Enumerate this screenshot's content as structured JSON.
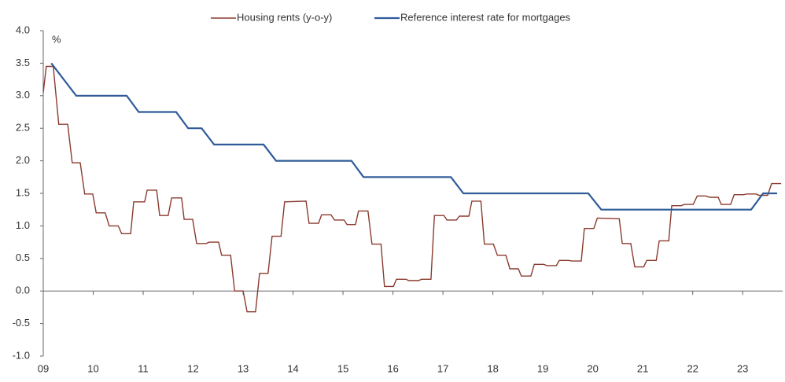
{
  "chart_data": {
    "type": "line",
    "annotation": "%",
    "xlim": [
      9,
      23.8
    ],
    "xticks": [
      {
        "value": 9,
        "label": "09"
      },
      10,
      11,
      12,
      13,
      14,
      15,
      16,
      17,
      18,
      19,
      20,
      21,
      22,
      23
    ],
    "ylim": [
      -1,
      4
    ],
    "yticks": [
      {
        "value": -1,
        "label": "-1.0"
      },
      {
        "value": -0.5,
        "label": "-0.5"
      },
      {
        "value": 0,
        "label": "0.0"
      },
      {
        "value": 0.5,
        "label": "0.5"
      },
      {
        "value": 1,
        "label": "1.0"
      },
      {
        "value": 1.5,
        "label": "1.5"
      },
      {
        "value": 2,
        "label": "2.0"
      },
      {
        "value": 2.5,
        "label": "2.5"
      },
      {
        "value": 3,
        "label": "3.0"
      },
      {
        "value": 3.5,
        "label": "3.5"
      },
      {
        "value": 4,
        "label": "4.0"
      }
    ],
    "grid": false,
    "legend": "top",
    "series": [
      {
        "name": "Housing rents (y-o-y)",
        "color": "#8b3a2e",
        "x": [
          9.0,
          9.06,
          9.2,
          9.31,
          9.49,
          9.58,
          9.74,
          9.83,
          9.99,
          10.06,
          10.24,
          10.32,
          10.5,
          10.57,
          10.75,
          10.81,
          11.03,
          11.08,
          11.27,
          11.33,
          11.5,
          11.57,
          11.77,
          11.82,
          11.99,
          12.07,
          12.26,
          12.32,
          12.51,
          12.57,
          12.75,
          12.83,
          13.0,
          13.08,
          13.25,
          13.33,
          13.5,
          13.58,
          13.76,
          13.83,
          14.26,
          14.32,
          14.51,
          14.57,
          14.76,
          14.83,
          15.02,
          15.08,
          15.25,
          15.31,
          15.5,
          15.58,
          15.76,
          15.83,
          16.01,
          16.07,
          16.26,
          16.32,
          16.51,
          16.57,
          16.76,
          16.83,
          17.02,
          17.08,
          17.27,
          17.33,
          17.52,
          17.58,
          17.76,
          17.83,
          18.01,
          18.09,
          18.26,
          18.34,
          18.51,
          18.57,
          18.76,
          18.83,
          19.02,
          19.08,
          19.27,
          19.33,
          19.52,
          19.58,
          19.77,
          19.83,
          20.02,
          20.09,
          20.53,
          20.59,
          20.76,
          20.84,
          21.02,
          21.08,
          21.27,
          21.33,
          21.52,
          21.58,
          21.77,
          21.83,
          22.01,
          22.09,
          22.26,
          22.34,
          22.51,
          22.57,
          22.76,
          22.83,
          23.02,
          23.08,
          23.27,
          23.33,
          23.5,
          23.58,
          23.77
        ],
        "values": [
          3.05,
          3.45,
          3.45,
          2.56,
          2.56,
          1.97,
          1.97,
          1.49,
          1.49,
          1.2,
          1.2,
          1.0,
          1.0,
          0.88,
          0.88,
          1.37,
          1.37,
          1.55,
          1.55,
          1.16,
          1.16,
          1.43,
          1.43,
          1.1,
          1.1,
          0.73,
          0.73,
          0.75,
          0.75,
          0.55,
          0.55,
          0.0,
          0.0,
          -0.32,
          -0.32,
          0.27,
          0.27,
          0.84,
          0.84,
          1.37,
          1.38,
          1.04,
          1.04,
          1.17,
          1.17,
          1.09,
          1.09,
          1.02,
          1.02,
          1.23,
          1.23,
          0.72,
          0.72,
          0.07,
          0.07,
          0.18,
          0.18,
          0.16,
          0.16,
          0.18,
          0.18,
          1.16,
          1.16,
          1.09,
          1.09,
          1.15,
          1.15,
          1.38,
          1.38,
          0.72,
          0.72,
          0.55,
          0.55,
          0.34,
          0.34,
          0.23,
          0.23,
          0.41,
          0.41,
          0.39,
          0.39,
          0.47,
          0.47,
          0.46,
          0.46,
          0.96,
          0.96,
          1.12,
          1.11,
          0.73,
          0.73,
          0.37,
          0.37,
          0.47,
          0.47,
          0.77,
          0.77,
          1.31,
          1.31,
          1.33,
          1.33,
          1.46,
          1.46,
          1.44,
          1.44,
          1.33,
          1.33,
          1.48,
          1.48,
          1.49,
          1.49,
          1.47,
          1.47,
          1.65,
          1.65
        ]
      },
      {
        "name": "Reference interest rate for mortgages",
        "color": "#2f5b98",
        "x": [
          9.16,
          9.66,
          10.67,
          10.91,
          11.66,
          11.9,
          12.17,
          12.42,
          13.41,
          13.66,
          15.17,
          15.41,
          17.16,
          17.41,
          19.91,
          20.17,
          23.17,
          23.41,
          23.69
        ],
        "values": [
          3.5,
          3.0,
          3.0,
          2.75,
          2.75,
          2.5,
          2.5,
          2.25,
          2.25,
          2.0,
          2.0,
          1.75,
          1.75,
          1.5,
          1.5,
          1.25,
          1.25,
          1.5,
          1.5
        ]
      }
    ]
  }
}
